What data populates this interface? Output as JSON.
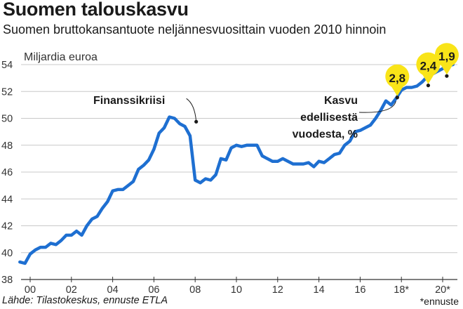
{
  "header": {
    "title": "Suomen talouskasvu",
    "subtitle": "Suomen bruttokansantuote neljännesvuosittain vuoden 2010 hinnoin"
  },
  "footer": {
    "source": "Lähde: Tilastokeskus, ennuste ETLA",
    "footnote": "*ennuste"
  },
  "colors": {
    "line": "#1e6fd1",
    "bubble": "#f9e418",
    "grid": "#c8c8c8",
    "text": "#1a1a1a"
  },
  "chart_data": {
    "type": "line",
    "title": "Suomen talouskasvu",
    "subtitle": "Suomen bruttokansantuote neljännesvuosittain vuoden 2010 hinnoin",
    "ylabel": "Miljardia euroa",
    "ylim": [
      38,
      54
    ],
    "xlim": [
      1999.5,
      2020.5
    ],
    "yticks": [
      38,
      40,
      42,
      44,
      46,
      48,
      50,
      52,
      54
    ],
    "xticks": [
      {
        "value": 2000,
        "label": "00"
      },
      {
        "value": 2002,
        "label": "02"
      },
      {
        "value": 2004,
        "label": "04"
      },
      {
        "value": 2006,
        "label": "06"
      },
      {
        "value": 2008,
        "label": "08"
      },
      {
        "value": 2010,
        "label": "10"
      },
      {
        "value": 2012,
        "label": "12"
      },
      {
        "value": 2014,
        "label": "14"
      },
      {
        "value": 2016,
        "label": "16"
      },
      {
        "value": 2018,
        "label": "18*"
      },
      {
        "value": 2020,
        "label": "20*"
      }
    ],
    "grid": true,
    "series": [
      {
        "x": [
          1999.5,
          1999.75,
          2000,
          2000.25,
          2000.5,
          2000.75,
          2001,
          2001.25,
          2001.5,
          2001.75,
          2002,
          2002.25,
          2002.5,
          2002.75,
          2003,
          2003.25,
          2003.5,
          2003.75,
          2004,
          2004.25,
          2004.5,
          2004.75,
          2005,
          2005.25,
          2005.5,
          2005.75,
          2006,
          2006.25,
          2006.5,
          2006.75,
          2007,
          2007.25,
          2007.5,
          2007.75,
          2008,
          2008.25,
          2008.5,
          2008.75,
          2009,
          2009.25,
          2009.5,
          2009.75,
          2010,
          2010.25,
          2010.5,
          2010.75,
          2011,
          2011.25,
          2011.5,
          2011.75,
          2012,
          2012.25,
          2012.5,
          2012.75,
          2013,
          2013.25,
          2013.5,
          2013.75,
          2014,
          2014.25,
          2014.5,
          2014.75,
          2015,
          2015.25,
          2015.5,
          2015.75,
          2016,
          2016.25,
          2016.5,
          2016.75,
          2017,
          2017.25,
          2017.5,
          2017.75,
          2018,
          2018.25,
          2018.5,
          2018.75,
          2019,
          2019.25,
          2019.5,
          2019.75,
          2020,
          2020.25,
          2020.5
        ],
        "values": [
          39.3,
          39.2,
          39.9,
          40.2,
          40.4,
          40.4,
          40.7,
          40.6,
          40.9,
          41.3,
          41.3,
          41.6,
          41.3,
          42.0,
          42.5,
          42.7,
          43.3,
          43.8,
          44.6,
          44.7,
          44.7,
          45.0,
          45.3,
          46.2,
          46.5,
          46.9,
          47.7,
          48.9,
          49.3,
          50.1,
          50.0,
          49.6,
          49.4,
          48.7,
          45.4,
          45.2,
          45.5,
          45.4,
          45.8,
          47.0,
          46.9,
          47.8,
          48.0,
          47.9,
          48.0,
          48.0,
          48.0,
          47.2,
          47.0,
          46.8,
          46.8,
          47.0,
          46.8,
          46.6,
          46.6,
          46.6,
          46.7,
          46.4,
          46.8,
          46.7,
          47.0,
          47.3,
          47.4,
          48.0,
          48.3,
          49.0,
          49.1,
          49.3,
          49.5,
          50.0,
          50.6,
          51.3,
          51.0,
          51.5,
          52.1,
          52.3,
          52.3,
          52.4,
          52.7,
          53.1,
          53.3,
          53.5,
          53.7,
          53.9,
          54.0
        ]
      }
    ],
    "annotations": [
      {
        "text": "Finanssikriisi",
        "x": 2008.05,
        "y": 49.75
      },
      {
        "text": "Kasvu",
        "line": 1
      },
      {
        "text": "edellisestä",
        "line": 2
      },
      {
        "text": "vuodesta, %",
        "line": 3,
        "x": 2017.8,
        "y": 51.5
      }
    ],
    "growth_labels": [
      {
        "label": "2,8",
        "x": 2017.8,
        "y": 51.5
      },
      {
        "label": "2,4",
        "x": 2019.3,
        "y": 52.4
      },
      {
        "label": "1,9",
        "x": 2020.2,
        "y": 53.1
      }
    ]
  }
}
